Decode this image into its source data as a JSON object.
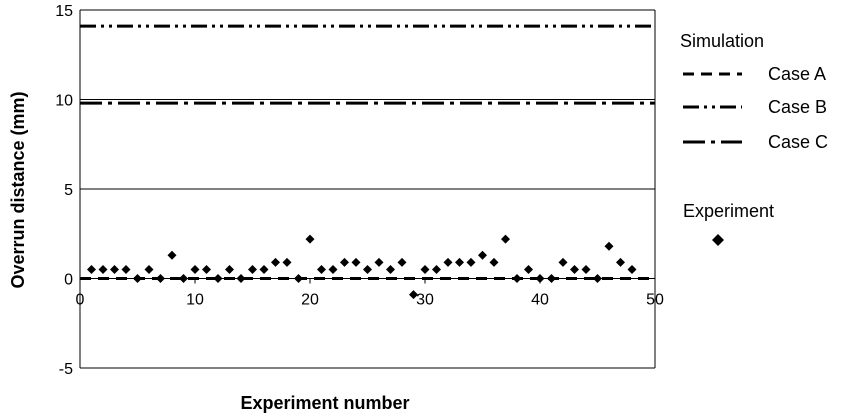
{
  "chart_data": {
    "type": "scatter",
    "title": "",
    "xlabel": "Experiment number",
    "ylabel": "Overrun distance (mm)",
    "xlim": [
      0,
      50
    ],
    "ylim": [
      -5,
      15
    ],
    "x_ticks": [
      "0",
      "10",
      "20",
      "30",
      "40",
      "50"
    ],
    "y_ticks": [
      "-5",
      "0",
      "5",
      "10",
      "15"
    ],
    "grid": "horizontal",
    "legend_placement": "right",
    "simulation_heading": "Simulation",
    "experiment_heading": "Experiment",
    "simulation_series": [
      {
        "name": "Case A",
        "value": 0.0,
        "dash": "dash"
      },
      {
        "name": "Case B",
        "value": 14.1,
        "dash": "dash-dot-dot"
      },
      {
        "name": "Case C",
        "value": 9.8,
        "dash": "dash-dot"
      }
    ],
    "experiment_points": [
      {
        "x": 1,
        "y": 0.5
      },
      {
        "x": 2,
        "y": 0.5
      },
      {
        "x": 3,
        "y": 0.5
      },
      {
        "x": 4,
        "y": 0.5
      },
      {
        "x": 5,
        "y": 0.0
      },
      {
        "x": 6,
        "y": 0.5
      },
      {
        "x": 7,
        "y": 0.0
      },
      {
        "x": 8,
        "y": 1.3
      },
      {
        "x": 9,
        "y": 0.0
      },
      {
        "x": 10,
        "y": 0.5
      },
      {
        "x": 11,
        "y": 0.5
      },
      {
        "x": 12,
        "y": 0.0
      },
      {
        "x": 13,
        "y": 0.5
      },
      {
        "x": 14,
        "y": 0.0
      },
      {
        "x": 15,
        "y": 0.5
      },
      {
        "x": 16,
        "y": 0.5
      },
      {
        "x": 17,
        "y": 0.9
      },
      {
        "x": 18,
        "y": 0.9
      },
      {
        "x": 19,
        "y": 0.0
      },
      {
        "x": 20,
        "y": 2.2
      },
      {
        "x": 21,
        "y": 0.5
      },
      {
        "x": 22,
        "y": 0.5
      },
      {
        "x": 23,
        "y": 0.9
      },
      {
        "x": 24,
        "y": 0.9
      },
      {
        "x": 25,
        "y": 0.5
      },
      {
        "x": 26,
        "y": 0.9
      },
      {
        "x": 27,
        "y": 0.5
      },
      {
        "x": 28,
        "y": 0.9
      },
      {
        "x": 29,
        "y": -0.9
      },
      {
        "x": 30,
        "y": 0.5
      },
      {
        "x": 31,
        "y": 0.5
      },
      {
        "x": 32,
        "y": 0.9
      },
      {
        "x": 33,
        "y": 0.9
      },
      {
        "x": 34,
        "y": 0.9
      },
      {
        "x": 35,
        "y": 1.3
      },
      {
        "x": 36,
        "y": 0.9
      },
      {
        "x": 37,
        "y": 2.2
      },
      {
        "x": 38,
        "y": 0.0
      },
      {
        "x": 39,
        "y": 0.5
      },
      {
        "x": 40,
        "y": 0.0
      },
      {
        "x": 41,
        "y": 0.0
      },
      {
        "x": 42,
        "y": 0.9
      },
      {
        "x": 43,
        "y": 0.5
      },
      {
        "x": 44,
        "y": 0.5
      },
      {
        "x": 45,
        "y": 0.0
      },
      {
        "x": 46,
        "y": 1.8
      },
      {
        "x": 47,
        "y": 0.9
      },
      {
        "x": 48,
        "y": 0.5
      }
    ]
  }
}
